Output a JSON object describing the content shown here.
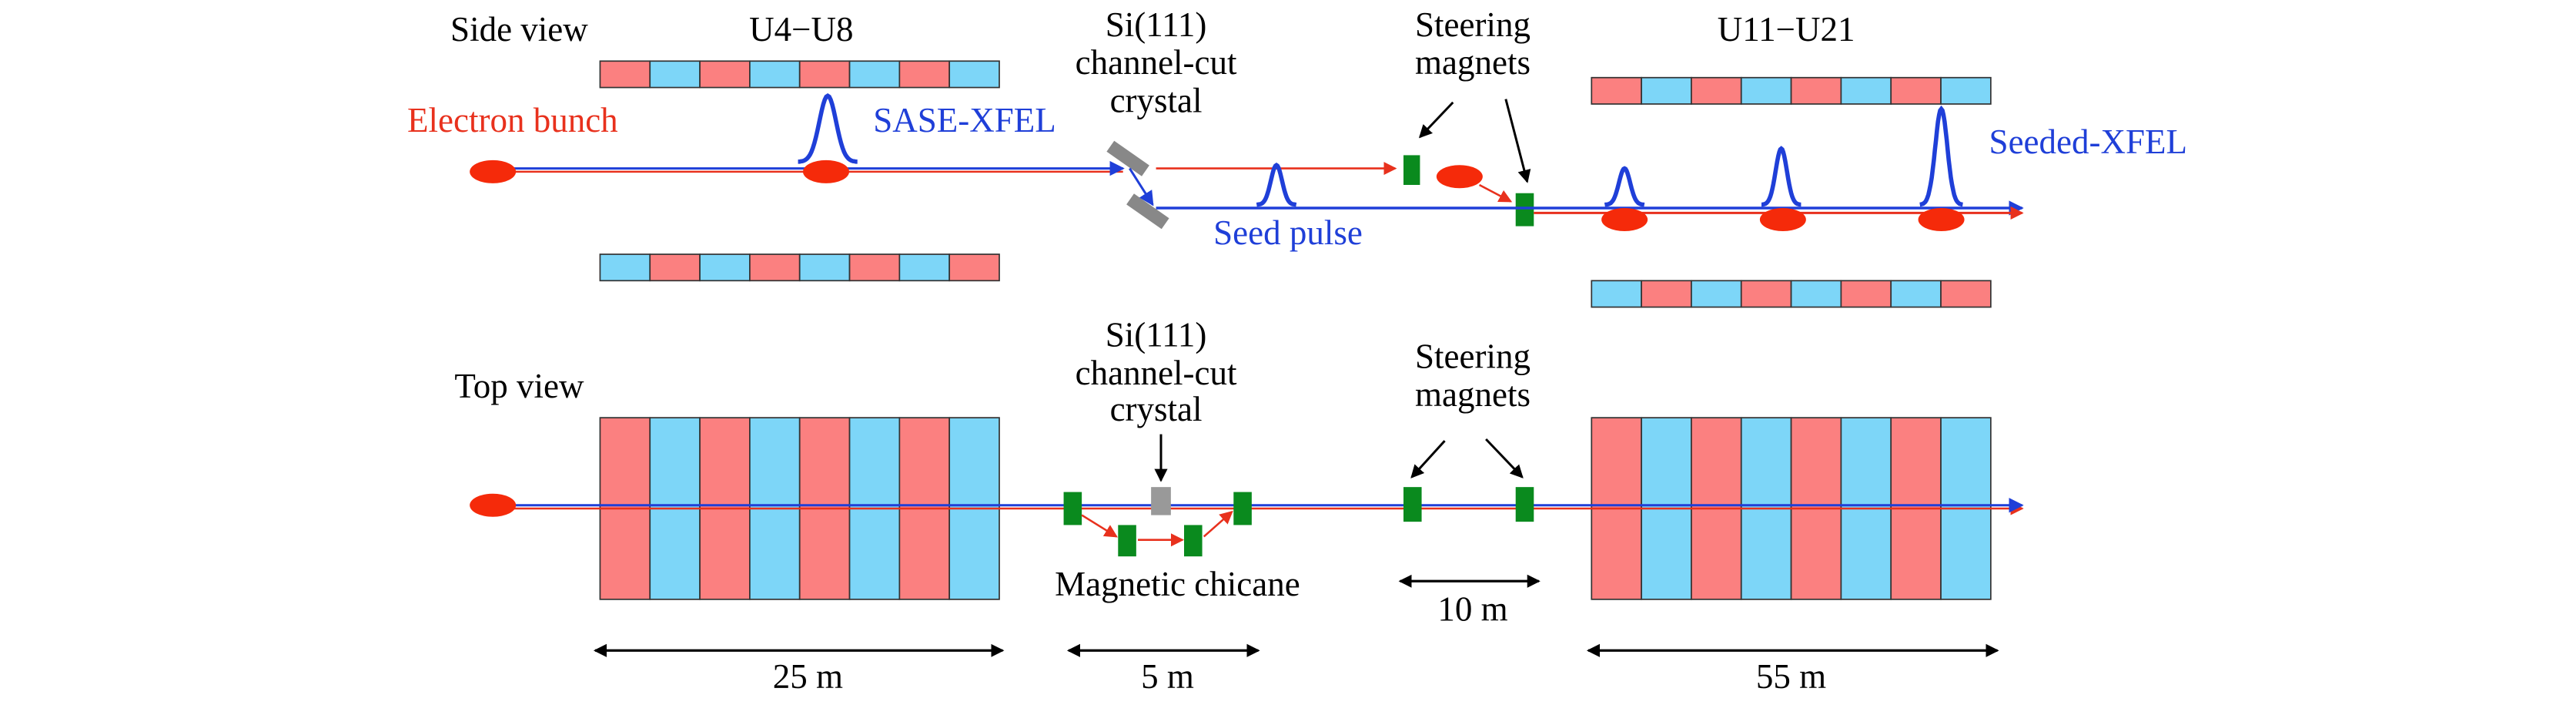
{
  "side_view": {
    "title": "Side view",
    "left_undulator": "U4−U8",
    "right_undulator": "U11−U21",
    "electron_bunch": "Electron bunch",
    "sase": "SASE-XFEL",
    "seed_pulse": "Seed pulse",
    "seeded": "Seeded-XFEL",
    "crystal": [
      "Si(111)",
      "channel-cut",
      "crystal"
    ],
    "steering": [
      "Steering",
      "magnets"
    ]
  },
  "top_view": {
    "title": "Top view",
    "crystal": [
      "Si(111)",
      "channel-cut",
      "crystal"
    ],
    "steering": [
      "Steering",
      "magnets"
    ],
    "chicane": "Magnetic chicane",
    "steering_distance": "10 m",
    "lengths": [
      "25 m",
      "5 m",
      "55 m"
    ]
  }
}
